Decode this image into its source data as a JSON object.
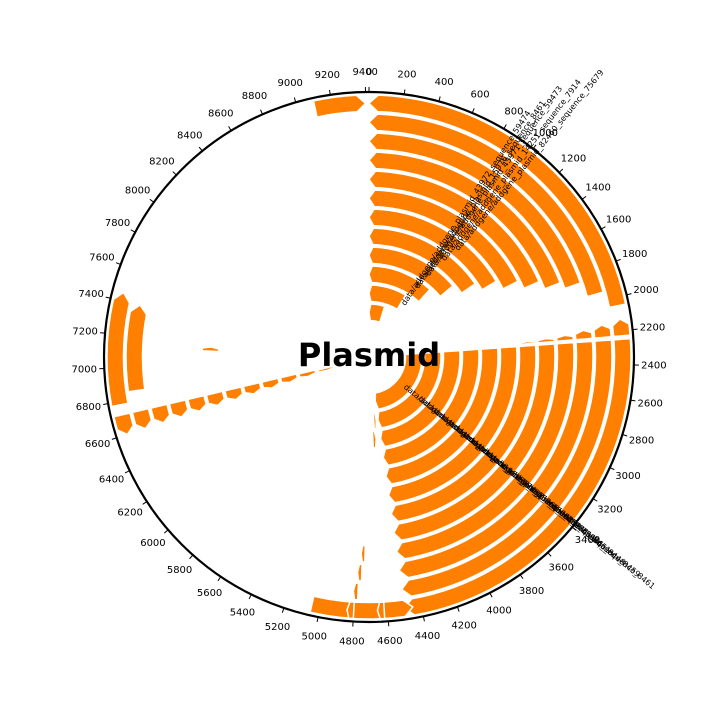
{
  "title": "Plasmid",
  "sequence_length": 9420,
  "scale_labels": [
    "0",
    "200",
    "400",
    "600",
    "800",
    "1000",
    "1200",
    "1400",
    "1600",
    "1800",
    "2000",
    "2200",
    "2400",
    "2600",
    "2800",
    "3000",
    "3200",
    "3400",
    "3600",
    "3800",
    "4000",
    "4200",
    "4400",
    "4600",
    "4800",
    "5000",
    "5200",
    "5400",
    "5600",
    "5800",
    "6000",
    "6200",
    "6400",
    "6600",
    "6800",
    "7000",
    "7200",
    "7400",
    "7600",
    "7800",
    "8000",
    "8200",
    "8400",
    "8600",
    "8800",
    "9000",
    "9200",
    "9400"
  ],
  "feature_color": "#ff8000",
  "features": [
    {
      "start": 0,
      "end": 2050,
      "track": 0,
      "strand": "-",
      "label": "data/addgene/addgene_plasmid_82460_sequence_75679"
    },
    {
      "start": 0,
      "end": 1950,
      "track": 1,
      "strand": "-",
      "label": "data/addgene/addgene_plasmid_14251_sequence_7914"
    },
    {
      "start": 0,
      "end": 1850,
      "track": 2,
      "strand": "-",
      "label": "data/addgene/addgene_plasmid_43971_sequence_59473"
    },
    {
      "start": 0,
      "end": 1800,
      "track": 3,
      "strand": "-",
      "label": "data/addgene/addgene_plasmid_15976_sequence_8461"
    },
    {
      "start": 0,
      "end": 1730,
      "track": 4,
      "strand": "-",
      "label": "data/addgene/addgene_plasmid_43972_sequence_59474"
    },
    {
      "start": 0,
      "end": 1650,
      "track": 5,
      "strand": "-",
      "label": ""
    },
    {
      "start": 0,
      "end": 1550,
      "track": 6,
      "strand": "-",
      "label": ""
    },
    {
      "start": 0,
      "end": 1450,
      "track": 7,
      "strand": "-",
      "label": ""
    },
    {
      "start": 0,
      "end": 1300,
      "track": 8,
      "strand": "-",
      "label": ""
    },
    {
      "start": 0,
      "end": 1100,
      "track": 9,
      "strand": "-",
      "label": ""
    },
    {
      "start": 0,
      "end": 800,
      "track": 10,
      "strand": "-",
      "label": ""
    },
    {
      "start": 0,
      "end": 450,
      "track": 11,
      "strand": "-",
      "label": ""
    },
    {
      "start": 2250,
      "end": 4500,
      "track": 0,
      "strand": "+",
      "label": "data/addgene/addgene_plasmid_15976_sequence_8461"
    },
    {
      "start": 2250,
      "end": 4500,
      "track": 1,
      "strand": "+",
      "label": "data/addgene/addgene_plasmid_15974_sequence_8459"
    },
    {
      "start": 2250,
      "end": 4500,
      "track": 2,
      "strand": "+",
      "label": "data/addgene/addgene_plasmid_15963_sequence_8448"
    },
    {
      "start": 2250,
      "end": 4500,
      "track": 3,
      "strand": "+",
      "label": "data/addgene/addgene_plasmid_15966_sequence_8451"
    },
    {
      "start": 2250,
      "end": 4500,
      "track": 4,
      "strand": "+",
      "label": "data/addgene/addgene_plasmid_17437_sequence_8611"
    },
    {
      "start": 2250,
      "end": 4500,
      "track": 5,
      "strand": "+",
      "label": "data/addgene/addgene_plasmid_15973_sequence_8458"
    },
    {
      "start": 2250,
      "end": 4500,
      "track": 6,
      "strand": "+",
      "label": ""
    },
    {
      "start": 2250,
      "end": 4500,
      "track": 7,
      "strand": "+",
      "label": ""
    },
    {
      "start": 2250,
      "end": 4500,
      "track": 8,
      "strand": "+",
      "label": ""
    },
    {
      "start": 2250,
      "end": 4500,
      "track": 9,
      "strand": "+",
      "label": ""
    },
    {
      "start": 2250,
      "end": 4500,
      "track": 10,
      "strand": "+",
      "label": ""
    },
    {
      "start": 2250,
      "end": 4500,
      "track": 11,
      "strand": "+",
      "label": ""
    },
    {
      "start": 2130,
      "end": 2230,
      "track": 0,
      "strand": "-",
      "label": ""
    },
    {
      "start": 2150,
      "end": 2230,
      "track": 1,
      "strand": "-",
      "label": ""
    },
    {
      "start": 2170,
      "end": 2230,
      "track": 2,
      "strand": "-",
      "label": ""
    },
    {
      "start": 2190,
      "end": 2230,
      "track": 3,
      "strand": "-",
      "label": ""
    },
    {
      "start": 2200,
      "end": 2230,
      "track": 4,
      "strand": "-",
      "label": ""
    },
    {
      "start": 2210,
      "end": 2230,
      "track": 5,
      "strand": "-",
      "label": ""
    },
    {
      "start": 4450,
      "end": 5050,
      "track": 0,
      "strand": "-",
      "label": ""
    },
    {
      "start": 4620,
      "end": 4660,
      "track": 0,
      "strand": "+",
      "label": ""
    },
    {
      "start": 4800,
      "end": 4840,
      "track": 0,
      "strand": "+",
      "label": ""
    },
    {
      "start": 4780,
      "end": 4810,
      "track": 1,
      "strand": "+",
      "label": ""
    },
    {
      "start": 4760,
      "end": 4790,
      "track": 2,
      "strand": "+",
      "label": ""
    },
    {
      "start": 4740,
      "end": 4770,
      "track": 3,
      "strand": "+",
      "label": ""
    },
    {
      "start": 4580,
      "end": 4640,
      "track": 9,
      "strand": "-",
      "label": ""
    },
    {
      "start": 4540,
      "end": 4600,
      "track": 10,
      "strand": "-",
      "label": ""
    },
    {
      "start": 6600,
      "end": 6720,
      "track": 0,
      "strand": "-",
      "label": ""
    },
    {
      "start": 6600,
      "end": 6720,
      "track": 1,
      "strand": "-",
      "label": ""
    },
    {
      "start": 6600,
      "end": 6720,
      "track": 2,
      "strand": "-",
      "label": ""
    },
    {
      "start": 6600,
      "end": 6720,
      "track": 3,
      "strand": "-",
      "label": ""
    },
    {
      "start": 6600,
      "end": 6720,
      "track": 4,
      "strand": "-",
      "label": ""
    },
    {
      "start": 6600,
      "end": 6720,
      "track": 5,
      "strand": "-",
      "label": ""
    },
    {
      "start": 6600,
      "end": 6720,
      "track": 6,
      "strand": "-",
      "label": ""
    },
    {
      "start": 6600,
      "end": 6720,
      "track": 7,
      "strand": "-",
      "label": ""
    },
    {
      "start": 6600,
      "end": 6720,
      "track": 8,
      "strand": "-",
      "label": ""
    },
    {
      "start": 6600,
      "end": 6720,
      "track": 9,
      "strand": "-",
      "label": ""
    },
    {
      "start": 6600,
      "end": 6710,
      "track": 10,
      "strand": "-",
      "label": ""
    },
    {
      "start": 6600,
      "end": 6690,
      "track": 11,
      "strand": "-",
      "label": ""
    },
    {
      "start": 6780,
      "end": 7450,
      "track": 0,
      "strand": "+",
      "label": ""
    },
    {
      "start": 6850,
      "end": 7400,
      "track": 1,
      "strand": "+",
      "label": ""
    },
    {
      "start": 7120,
      "end": 7160,
      "track": 5,
      "strand": "+",
      "label": ""
    },
    {
      "start": 9100,
      "end": 9400,
      "track": 0,
      "strand": "+",
      "label": ""
    }
  ]
}
